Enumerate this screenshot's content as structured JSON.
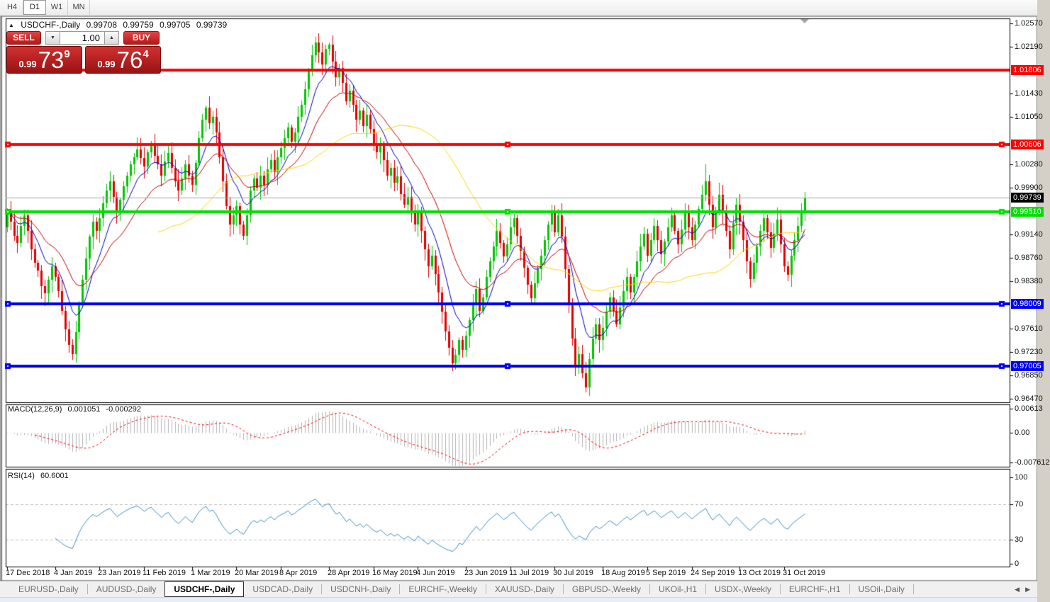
{
  "toolbar": {
    "timeframes": [
      {
        "label": "H4",
        "active": false
      },
      {
        "label": "D1",
        "active": true
      },
      {
        "label": "W1",
        "active": false
      },
      {
        "label": "MN",
        "active": false
      }
    ]
  },
  "chart_header": {
    "collapse_icon": "▲",
    "symbol": "USDCHF-,Daily",
    "open": "0.99708",
    "high": "0.99759",
    "low": "0.99705",
    "close": "0.99739"
  },
  "one_click": {
    "sell_label": "SELL",
    "buy_label": "BUY",
    "volume": "1.00",
    "spinner_down_icon": "▼",
    "spinner_up_icon": "▲",
    "sell_price": {
      "prefix": "0.99",
      "big": "73",
      "pip": "9"
    },
    "buy_price": {
      "prefix": "0.99",
      "big": "76",
      "pip": "4"
    }
  },
  "indicator_labels": {
    "macd_name": "MACD(12,26,9)",
    "macd_main": "0.001051",
    "macd_signal": "-0.000292",
    "rsi_name": "RSI(14)",
    "rsi_value": "60.6001"
  },
  "chart_data": {
    "type": "candlestick",
    "symbol": "USDCHF",
    "timeframe": "Daily",
    "ohlc_current": {
      "open": 0.99708,
      "high": 0.99759,
      "low": 0.99705,
      "close": 0.99739
    },
    "y_ticks": [
      "1.02570",
      "1.02190",
      "1.01430",
      "1.01050",
      "1.00280",
      "0.99900",
      "0.99140",
      "0.98760",
      "0.98380",
      "0.97610",
      "0.97230",
      "0.96850",
      "0.96470"
    ],
    "x_labels": [
      {
        "i": 0,
        "t": "17 Dec 2018"
      },
      {
        "i": 14,
        "t": "4 Jan 2019"
      },
      {
        "i": 27,
        "t": "23 Jan 2019"
      },
      {
        "i": 40,
        "t": "11 Feb 2019"
      },
      {
        "i": 54,
        "t": "1 Mar 2019"
      },
      {
        "i": 67,
        "t": "20 Mar 2019"
      },
      {
        "i": 80,
        "t": "8 Apr 2019"
      },
      {
        "i": 94,
        "t": "28 Apr 2019"
      },
      {
        "i": 107,
        "t": "16 May 2019"
      },
      {
        "i": 120,
        "t": "4 Jun 2019"
      },
      {
        "i": 134,
        "t": "23 Jun 2019"
      },
      {
        "i": 147,
        "t": "11 Jul 2019"
      },
      {
        "i": 160,
        "t": "30 Jul 2019"
      },
      {
        "i": 174,
        "t": "18 Aug 2019"
      },
      {
        "i": 187,
        "t": "5 Sep 2019"
      },
      {
        "i": 200,
        "t": "24 Sep 2019"
      },
      {
        "i": 214,
        "t": "13 Oct 2019"
      },
      {
        "i": 227,
        "t": "31 Oct 2019"
      }
    ],
    "closes": [
      0.995,
      0.9935,
      0.9912,
      0.99,
      0.9928,
      0.9945,
      0.992,
      0.989,
      0.9868,
      0.9855,
      0.983,
      0.9818,
      0.984,
      0.9862,
      0.9845,
      0.9822,
      0.979,
      0.976,
      0.9735,
      0.972,
      0.9755,
      0.98,
      0.984,
      0.9875,
      0.991,
      0.9935,
      0.992,
      0.994,
      0.9965,
      0.9985,
      1.0,
      0.9975,
      0.995,
      0.997,
      0.9992,
      1.001,
      1.0028,
      1.004,
      1.0052,
      1.0038,
      1.0025,
      1.0048,
      1.006,
      1.0042,
      1.0028,
      1.001,
      1.0032,
      1.0046,
      1.0022,
      1.0,
      0.9985,
      1.0005,
      1.0028,
      1.001,
      0.9995,
      1.003,
      1.007,
      1.01,
      1.012,
      1.0095,
      1.0105,
      1.008,
      1.004,
      1.0,
      0.996,
      0.993,
      0.9945,
      0.996,
      0.993,
      0.9912,
      0.9945,
      0.9985,
      1.0005,
      0.999,
      1.001,
      0.9995,
      1.002,
      1.0035,
      1.0015,
      1.004,
      1.0055,
      1.007,
      1.0088,
      1.0065,
      1.008,
      1.0105,
      1.0125,
      1.015,
      1.018,
      1.0205,
      1.0226,
      1.021,
      1.019,
      1.0215,
      1.0222,
      1.0195,
      1.017,
      1.0185,
      1.016,
      1.013,
      1.0148,
      1.0125,
      1.01,
      1.0115,
      1.009,
      1.0108,
      1.0085,
      1.0062,
      1.0048,
      1.006,
      1.0035,
      1.001,
      1.0022,
      0.9998,
      1.0008,
      0.998,
      0.9962,
      0.9975,
      0.995,
      0.993,
      0.9952,
      0.992,
      0.989,
      0.9862,
      0.988,
      0.985,
      0.982,
      0.9788,
      0.9756,
      0.973,
      0.9705,
      0.9718,
      0.9742,
      0.9726,
      0.975,
      0.9775,
      0.98,
      0.9825,
      0.979,
      0.9812,
      0.9845,
      0.987,
      0.9895,
      0.992,
      0.99,
      0.9878,
      0.9898,
      0.9925,
      0.994,
      0.9912,
      0.9888,
      0.986,
      0.9832,
      0.981,
      0.9835,
      0.9858,
      0.988,
      0.9905,
      0.993,
      0.9948,
      0.9918,
      0.9945,
      0.991,
      0.9858,
      0.98,
      0.9745,
      0.9698,
      0.972,
      0.9688,
      0.9665,
      0.9712,
      0.9745,
      0.9768,
      0.9742,
      0.9762,
      0.9788,
      0.9812,
      0.979,
      0.9768,
      0.9795,
      0.9822,
      0.9845,
      0.982,
      0.9845,
      0.987,
      0.9895,
      0.9915,
      0.988,
      0.9905,
      0.9928,
      0.9905,
      0.9882,
      0.9902,
      0.9925,
      0.9945,
      0.992,
      0.9898,
      0.9922,
      0.9948,
      0.9925,
      0.9905,
      0.993,
      0.9955,
      0.9978,
      1.0,
      0.9962,
      0.9925,
      0.9952,
      0.9978,
      0.9948,
      0.992,
      0.989,
      0.9932,
      0.9962,
      0.9935,
      0.9905,
      0.987,
      0.9842,
      0.9868,
      0.9895,
      0.992,
      0.994,
      0.9918,
      0.9892,
      0.9915,
      0.9938,
      0.9898,
      0.9862,
      0.9848,
      0.988,
      0.9905,
      0.9928,
      0.995,
      0.9974
    ],
    "wick_overrides": {
      "19": {
        "low": 0.9712
      },
      "58": {
        "high": 1.0124
      },
      "90": {
        "high": 1.0235
      },
      "130": {
        "low": 0.9693
      },
      "169": {
        "low": 0.9659
      },
      "204": {
        "high": 1.0028
      }
    },
    "up_color": "#00C800",
    "down_color": "#E60000",
    "moving_averages": [
      {
        "period": 9,
        "method": "ema",
        "color": "#0000C8"
      },
      {
        "period": 21,
        "method": "ema",
        "color": "#C80000"
      },
      {
        "period": 45,
        "method": "sma",
        "color": "#FFD700"
      }
    ],
    "horizontal_lines": [
      {
        "price": 1.01806,
        "label": "1.01806",
        "color": "#FF0000",
        "selected": false
      },
      {
        "price": 1.00606,
        "label": "1.00606",
        "color": "#FF0000",
        "selected": true
      },
      {
        "price": 0.9951,
        "label": "0.99510",
        "color": "#00E000",
        "selected": true
      },
      {
        "price": 0.98009,
        "label": "0.98009",
        "color": "#0000F0",
        "selected": true
      },
      {
        "price": 0.97005,
        "label": "0.97005",
        "color": "#0000F0",
        "selected": true
      }
    ],
    "current_price": {
      "value": 0.99739,
      "label": "0.99739",
      "label_bg": "#000000",
      "line_color": "#A6A6A6"
    },
    "macd": {
      "fast": 12,
      "slow": 26,
      "signal": 9,
      "axis_labels": [
        "0.00613",
        "0.00",
        "-0.007612"
      ],
      "hist_color": "#B4B4B4",
      "signal_color": "#FF0000",
      "last_main": 0.001051,
      "last_signal": -0.000292
    },
    "rsi": {
      "period": 14,
      "levels": [
        70,
        30
      ],
      "axis_labels": [
        "100",
        "70",
        "30",
        "0"
      ],
      "color": "#3E8EC8",
      "level_color": "#C0C0C0",
      "last_value": 60.6001
    }
  },
  "bottom_tabs": {
    "items": [
      {
        "label": "EURUSD-,Daily",
        "active": false
      },
      {
        "label": "AUDUSD-,Daily",
        "active": false
      },
      {
        "label": "USDCHF-,Daily",
        "active": true
      },
      {
        "label": "USDCAD-,Daily",
        "active": false
      },
      {
        "label": "USDCNH-,Daily",
        "active": false
      },
      {
        "label": "EURCHF-,Weekly",
        "active": false
      },
      {
        "label": "XAUUSD-,Daily",
        "active": false
      },
      {
        "label": "GBPUSD-,Weekly",
        "active": false
      },
      {
        "label": "UKOil-,H1",
        "active": false
      },
      {
        "label": "USDX-,Weekly",
        "active": false
      },
      {
        "label": "EURCHF-,H1",
        "active": false
      },
      {
        "label": "USOil-,Daily",
        "active": false
      }
    ],
    "scroll_left_icon": "◀",
    "scroll_right_icon": "▶"
  }
}
